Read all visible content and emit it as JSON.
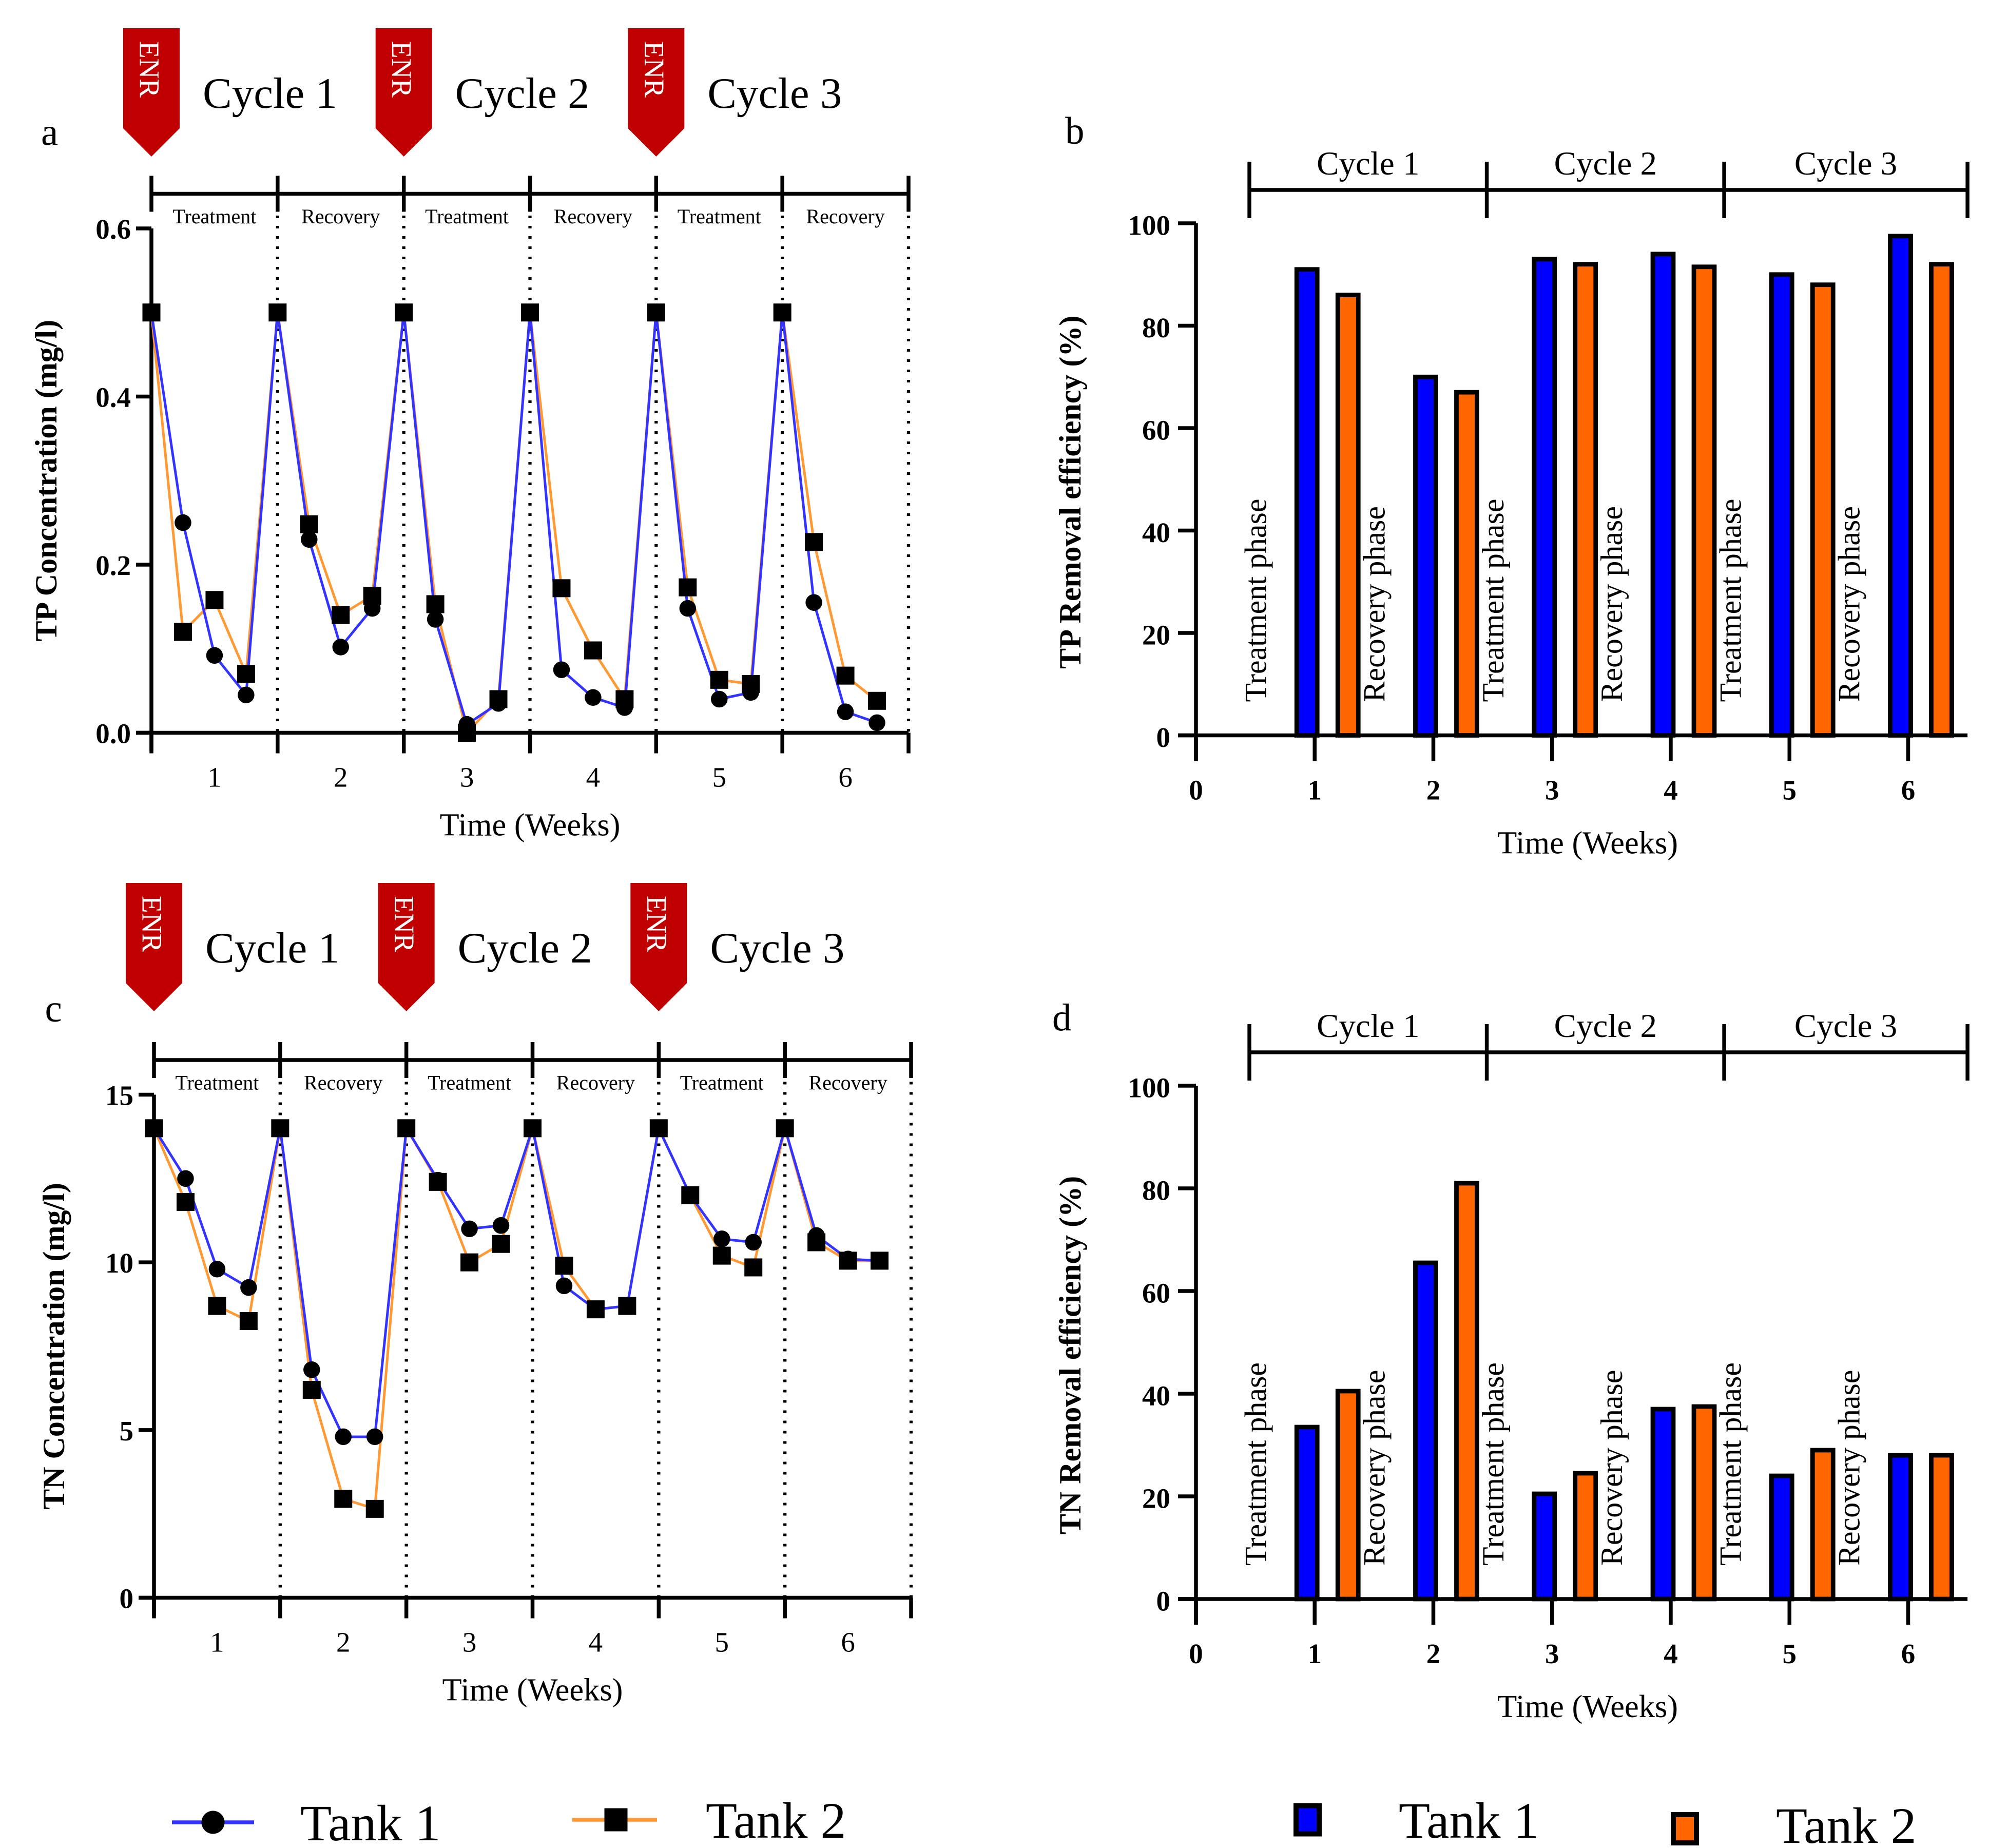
{
  "figure": {
    "legend_lines": [
      {
        "label": "Tank 1",
        "marker": "circle",
        "color": "#3333ff"
      },
      {
        "label": "Tank 2",
        "marker": "square",
        "color": "#ff9933"
      }
    ],
    "legend_bars": [
      {
        "label": "Tank 1",
        "color": "#0000ff"
      },
      {
        "label": "Tank 2",
        "color": "#ff6600"
      }
    ],
    "enr_label": "ENR",
    "cycles": [
      "Cycle 1",
      "Cycle 2",
      "Cycle 3"
    ],
    "cycles_line_panels": [
      "Cycle  1",
      "Cycle  2",
      "Cycle  3"
    ],
    "phase_labels": [
      "Treatment",
      "Recovery",
      "Treatment",
      "Recovery",
      "Treatment",
      "Recovery"
    ],
    "bar_phase_labels": [
      "Treatment phase",
      "Recovery phase",
      "Treatment phase",
      "Recovery phase",
      "Treatment phase",
      "Recovery phase"
    ]
  },
  "chart_data": [
    {
      "id": "a",
      "panel_label": "a",
      "type": "line",
      "title": "",
      "xlabel": "Time (Weeks)",
      "ylabel": "TP Concentration (mg/l)",
      "ylim": [
        0,
        0.6
      ],
      "yticks": [
        "0.0",
        "0.2",
        "0.4",
        "0.6"
      ],
      "yticks_values": [
        0,
        0.2,
        0.4,
        0.6
      ],
      "xtick_labels": [
        "1",
        "2",
        "3",
        "4",
        "5",
        "6"
      ],
      "x": [
        0,
        0.25,
        0.5,
        0.75,
        1,
        1.25,
        1.5,
        1.75,
        2,
        2.25,
        2.5,
        2.75,
        3,
        3.25,
        3.5,
        3.75,
        4,
        4.25,
        4.5,
        4.75,
        5,
        5.25,
        5.5,
        5.75
      ],
      "series": [
        {
          "name": "Tank 1",
          "marker": "circle",
          "values": [
            0.5,
            0.25,
            0.092,
            0.045,
            0.5,
            0.23,
            0.102,
            0.148,
            0.5,
            0.135,
            0.01,
            0.035,
            0.5,
            0.075,
            0.042,
            0.03,
            0.5,
            0.148,
            0.04,
            0.048,
            0.5,
            0.155,
            0.025,
            0.012
          ]
        },
        {
          "name": "Tank 2",
          "marker": "square",
          "values": [
            0.5,
            0.12,
            0.158,
            0.07,
            0.5,
            0.248,
            0.14,
            0.163,
            0.5,
            0.153,
            0.0,
            0.04,
            0.5,
            0.172,
            0.098,
            0.04,
            0.5,
            0.173,
            0.063,
            0.058,
            0.5,
            0.227,
            0.068,
            0.038
          ]
        }
      ]
    },
    {
      "id": "b",
      "panel_label": "b",
      "type": "bar",
      "title": "",
      "xlabel": "Time (Weeks)",
      "ylabel": "TP Removal efficiency (%)",
      "ylim": [
        0,
        100
      ],
      "yticks": [
        "0",
        "20",
        "40",
        "60",
        "80",
        "100"
      ],
      "yticks_values": [
        0,
        20,
        40,
        60,
        80,
        100
      ],
      "xtick_labels": [
        "0",
        "1",
        "2",
        "3",
        "4",
        "5",
        "6"
      ],
      "categories": [
        "1",
        "2",
        "3",
        "4",
        "5",
        "6"
      ],
      "series": [
        {
          "name": "Tank 1",
          "values": [
            91,
            70,
            93,
            94,
            90,
            97.5
          ]
        },
        {
          "name": "Tank 2",
          "values": [
            86,
            67,
            92,
            91.5,
            88,
            92
          ]
        }
      ]
    },
    {
      "id": "c",
      "panel_label": "c",
      "type": "line",
      "title": "",
      "xlabel": "Time (Weeks)",
      "ylabel": "TN Concentration (mg/l)",
      "ylim": [
        0,
        15
      ],
      "yticks": [
        "0",
        "5",
        "10",
        "15"
      ],
      "yticks_values": [
        0,
        5,
        10,
        15
      ],
      "xtick_labels": [
        "1",
        "2",
        "3",
        "4",
        "5",
        "6"
      ],
      "x": [
        0,
        0.25,
        0.5,
        0.75,
        1,
        1.25,
        1.5,
        1.75,
        2,
        2.25,
        2.5,
        2.75,
        3,
        3.25,
        3.5,
        3.75,
        4,
        4.25,
        4.5,
        4.75,
        5,
        5.25,
        5.5,
        5.75
      ],
      "series": [
        {
          "name": "Tank 1",
          "marker": "circle",
          "values": [
            14,
            12.5,
            9.8,
            9.25,
            14,
            6.8,
            4.8,
            4.8,
            14,
            12.45,
            11.0,
            11.1,
            14,
            9.3,
            8.6,
            8.7,
            14,
            12.0,
            10.7,
            10.6,
            14,
            10.8,
            10.1,
            10.05
          ]
        },
        {
          "name": "Tank 2",
          "marker": "square",
          "values": [
            14,
            11.8,
            8.7,
            8.25,
            14,
            6.2,
            2.95,
            2.65,
            14,
            12.4,
            10.0,
            10.55,
            14,
            9.9,
            8.6,
            8.7,
            14,
            12.0,
            10.2,
            9.85,
            14,
            10.6,
            10.05,
            10.05
          ]
        }
      ]
    },
    {
      "id": "d",
      "panel_label": "d",
      "type": "bar",
      "title": "",
      "xlabel": "Time (Weeks)",
      "ylabel": "TN Removal efficiency (%)",
      "ylim": [
        0,
        100
      ],
      "yticks": [
        "0",
        "20",
        "40",
        "60",
        "80",
        "100"
      ],
      "yticks_values": [
        0,
        20,
        40,
        60,
        80,
        100
      ],
      "xtick_labels": [
        "0",
        "1",
        "2",
        "3",
        "4",
        "5",
        "6"
      ],
      "categories": [
        "1",
        "2",
        "3",
        "4",
        "5",
        "6"
      ],
      "series": [
        {
          "name": "Tank 1",
          "values": [
            33.5,
            65.5,
            20.5,
            37,
            24,
            28
          ]
        },
        {
          "name": "Tank 2",
          "values": [
            40.5,
            81,
            24.5,
            37.5,
            29,
            28
          ]
        }
      ]
    }
  ]
}
